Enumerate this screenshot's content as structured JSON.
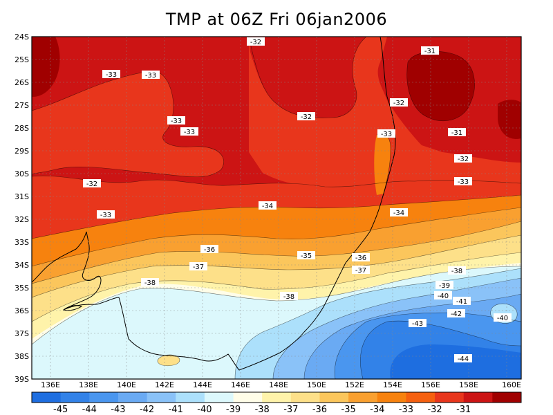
{
  "title": "TMP at 06Z Fri 06jan2006",
  "lat_labels": [
    "24S",
    "25S",
    "26S",
    "27S",
    "28S",
    "29S",
    "30S",
    "31S",
    "32S",
    "33S",
    "34S",
    "35S",
    "36S",
    "37S",
    "38S",
    "39S"
  ],
  "lon_labels": [
    "136E",
    "138E",
    "140E",
    "142E",
    "144E",
    "146E",
    "148E",
    "150E",
    "152E",
    "154E",
    "156E",
    "158E",
    "160E"
  ],
  "colorbar": {
    "labels": [
      "-45",
      "-44",
      "-43",
      "-42",
      "-41",
      "-40",
      "-39",
      "-38",
      "-37",
      "-36",
      "-35",
      "-34",
      "-33",
      "-32",
      "-31"
    ],
    "colors": [
      "#1e6ee0",
      "#3282e8",
      "#4a96ef",
      "#6aaaf3",
      "#8ac2f8",
      "#ace0fb",
      "#dcf8fc",
      "#fffde8",
      "#fff3aa",
      "#fde089",
      "#fbc65c",
      "#f9a030",
      "#f7820e",
      "#f5600f",
      "#e8361c",
      "#cc1414",
      "#a00000"
    ]
  },
  "contour_labels": [
    {
      "text": "-32"
    },
    {
      "text": "-31"
    },
    {
      "text": "-33"
    },
    {
      "text": "-33"
    },
    {
      "text": "-32"
    },
    {
      "text": "-32"
    },
    {
      "text": "-33"
    },
    {
      "text": "-33"
    },
    {
      "text": "-33"
    },
    {
      "text": "-31"
    },
    {
      "text": "-32"
    },
    {
      "text": "-32"
    },
    {
      "text": "-33"
    },
    {
      "text": "-33"
    },
    {
      "text": "-34"
    },
    {
      "text": "-34"
    },
    {
      "text": "-36"
    },
    {
      "text": "-35"
    },
    {
      "text": "-36"
    },
    {
      "text": "-37"
    },
    {
      "text": "-37"
    },
    {
      "text": "-38"
    },
    {
      "text": "-38"
    },
    {
      "text": "-38"
    },
    {
      "text": "-39"
    },
    {
      "text": "-40"
    },
    {
      "text": "-41"
    },
    {
      "text": "-42"
    },
    {
      "text": "-40"
    },
    {
      "text": "-43"
    },
    {
      "text": "-44"
    }
  ]
}
